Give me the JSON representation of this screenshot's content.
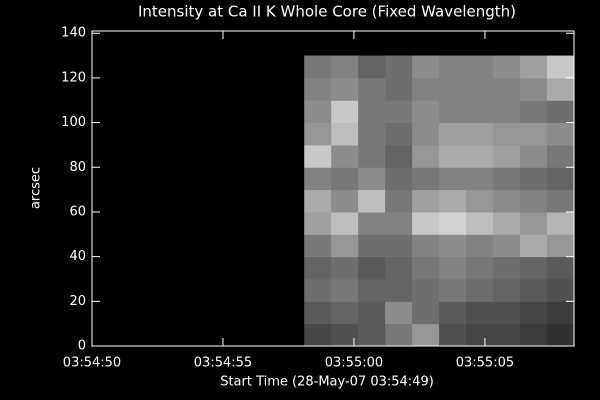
{
  "chart_data": {
    "type": "heatmap",
    "title": "Intensity at Ca II K Whole Core (Fixed Wavelength)",
    "x_label": "Start Time (28-May-07 03:54:49)",
    "y_label": "arcsec",
    "xlim": [
      1,
      19.4
    ],
    "xticks": [
      {
        "value": 1,
        "label": "03:54:50"
      },
      {
        "value": 6,
        "label": "03:54:55"
      },
      {
        "value": 11,
        "label": "03:55:00"
      },
      {
        "value": 16,
        "label": "03:55:05"
      }
    ],
    "ylim": [
      0,
      141
    ],
    "yticks": [
      0,
      20,
      40,
      60,
      80,
      100,
      120,
      140
    ],
    "image_x": [
      9.1,
      19.4
    ],
    "image_y": [
      0,
      130
    ],
    "values": [
      [
        70,
        80,
        90,
        120,
        150,
        80,
        70,
        70,
        60,
        50
      ],
      [
        90,
        100,
        90,
        140,
        110,
        90,
        80,
        80,
        70,
        60
      ],
      [
        110,
        120,
        100,
        100,
        110,
        120,
        110,
        100,
        90,
        80
      ],
      [
        100,
        110,
        90,
        100,
        120,
        130,
        120,
        110,
        100,
        90
      ],
      [
        120,
        150,
        110,
        110,
        130,
        140,
        130,
        140,
        170,
        150
      ],
      [
        160,
        190,
        130,
        130,
        200,
        210,
        190,
        170,
        150,
        180
      ],
      [
        170,
        140,
        190,
        120,
        160,
        170,
        150,
        140,
        130,
        120
      ],
      [
        130,
        120,
        140,
        110,
        120,
        130,
        130,
        120,
        110,
        100
      ],
      [
        200,
        140,
        120,
        100,
        150,
        170,
        170,
        160,
        140,
        120
      ],
      [
        150,
        190,
        120,
        110,
        140,
        160,
        160,
        150,
        150,
        140
      ],
      [
        140,
        200,
        120,
        120,
        140,
        130,
        130,
        130,
        120,
        110
      ],
      [
        130,
        140,
        120,
        110,
        130,
        130,
        130,
        130,
        140,
        170
      ],
      [
        120,
        130,
        100,
        110,
        140,
        130,
        130,
        140,
        160,
        200
      ]
    ]
  }
}
